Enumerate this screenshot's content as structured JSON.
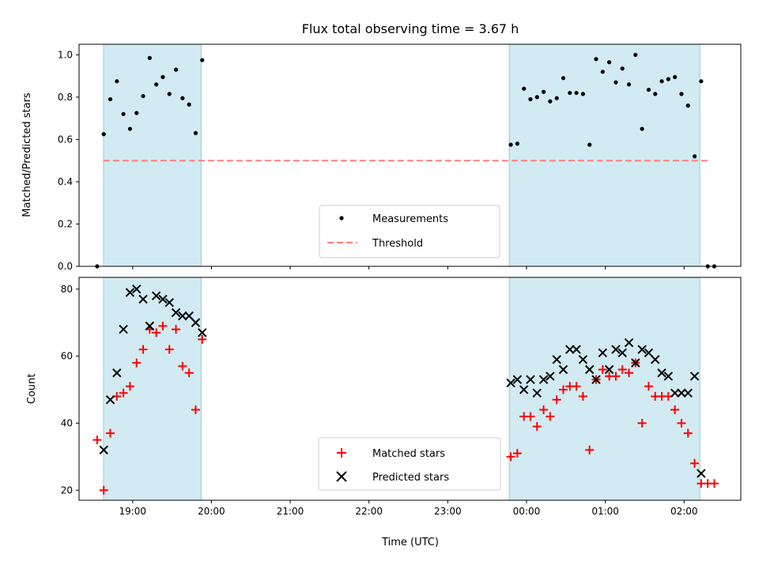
{
  "chart_data": [
    {
      "type": "scatter",
      "title": "Flux total observing time = 3.67 h",
      "ylabel": "Matched/Predicted stars",
      "xlim": [
        18.32,
        2.72
      ],
      "ylim": [
        0,
        1.05
      ],
      "yticks": [
        "0.0",
        "0.2",
        "0.4",
        "0.6",
        "0.8",
        "1.0"
      ],
      "shaded_regions": [
        [
          18.63,
          19.87
        ],
        [
          23.78,
          2.2
        ]
      ],
      "shade_color": "#add8e6",
      "legend": {
        "position": "lower center",
        "items": [
          "Measurements",
          "Threshold"
        ]
      },
      "threshold": {
        "name": "Threshold",
        "value": 0.5,
        "x_range": [
          18.63,
          2.3
        ],
        "color": "#ff8080",
        "style": "dashed"
      },
      "series": [
        {
          "name": "Measurements",
          "color": "#000000",
          "marker": "dot",
          "points": [
            [
              "18:33",
              0.0
            ],
            [
              "18:38",
              0.625
            ],
            [
              "18:43",
              0.79
            ],
            [
              "18:48",
              0.875
            ],
            [
              "18:53",
              0.72
            ],
            [
              "18:58",
              0.65
            ],
            [
              "19:03",
              0.725
            ],
            [
              "19:08",
              0.805
            ],
            [
              "19:13",
              0.985
            ],
            [
              "19:18",
              0.86
            ],
            [
              "19:23",
              0.895
            ],
            [
              "19:28",
              0.815
            ],
            [
              "19:33",
              0.93
            ],
            [
              "19:38",
              0.795
            ],
            [
              "19:43",
              0.765
            ],
            [
              "19:48",
              0.63
            ],
            [
              "19:53",
              0.975
            ],
            [
              "23:48",
              0.575
            ],
            [
              "23:53",
              0.58
            ],
            [
              "23:58",
              0.84
            ],
            [
              "00:03",
              0.79
            ],
            [
              "00:08",
              0.8
            ],
            [
              "00:13",
              0.825
            ],
            [
              "00:18",
              0.78
            ],
            [
              "00:23",
              0.795
            ],
            [
              "00:28",
              0.89
            ],
            [
              "00:33",
              0.82
            ],
            [
              "00:38",
              0.82
            ],
            [
              "00:43",
              0.815
            ],
            [
              "00:48",
              0.575
            ],
            [
              "00:53",
              0.98
            ],
            [
              "00:58",
              0.92
            ],
            [
              "01:03",
              0.965
            ],
            [
              "01:08",
              0.87
            ],
            [
              "01:13",
              0.935
            ],
            [
              "01:18",
              0.86
            ],
            [
              "01:23",
              1.0
            ],
            [
              "01:28",
              0.65
            ],
            [
              "01:33",
              0.835
            ],
            [
              "01:38",
              0.815
            ],
            [
              "01:43",
              0.875
            ],
            [
              "01:48",
              0.885
            ],
            [
              "01:53",
              0.895
            ],
            [
              "01:58",
              0.815
            ],
            [
              "02:03",
              0.76
            ],
            [
              "02:08",
              0.52
            ],
            [
              "02:13",
              0.875
            ],
            [
              "02:18",
              0.0
            ],
            [
              "02:23",
              0.0
            ]
          ]
        }
      ]
    },
    {
      "type": "scatter",
      "xlabel": "Time (UTC)",
      "ylabel": "Count",
      "xlim": [
        18.32,
        2.72
      ],
      "ylim": [
        17,
        83.5
      ],
      "yticks": [
        "20",
        "40",
        "60",
        "80"
      ],
      "xticks": [
        "19:00",
        "20:00",
        "21:00",
        "22:00",
        "23:00",
        "00:00",
        "01:00",
        "02:00"
      ],
      "shaded_regions": [
        [
          18.63,
          19.87
        ],
        [
          23.78,
          2.2
        ]
      ],
      "shade_color": "#add8e6",
      "legend": {
        "position": "lower center",
        "items": [
          "Matched stars",
          "Predicted stars"
        ]
      },
      "series": [
        {
          "name": "Matched stars",
          "color": "#ff0000",
          "marker": "plus",
          "points": [
            [
              "18:33",
              35
            ],
            [
              "18:38",
              20
            ],
            [
              "18:43",
              37
            ],
            [
              "18:48",
              48
            ],
            [
              "18:53",
              49
            ],
            [
              "18:58",
              51
            ],
            [
              "19:03",
              58
            ],
            [
              "19:08",
              62
            ],
            [
              "19:13",
              68
            ],
            [
              "19:18",
              67
            ],
            [
              "19:23",
              69
            ],
            [
              "19:28",
              62
            ],
            [
              "19:33",
              68
            ],
            [
              "19:38",
              57
            ],
            [
              "19:43",
              55
            ],
            [
              "19:48",
              44
            ],
            [
              "19:53",
              65
            ],
            [
              "23:48",
              30
            ],
            [
              "23:53",
              31
            ],
            [
              "23:58",
              42
            ],
            [
              "00:03",
              42
            ],
            [
              "00:08",
              39
            ],
            [
              "00:13",
              44
            ],
            [
              "00:18",
              42
            ],
            [
              "00:23",
              47
            ],
            [
              "00:28",
              50
            ],
            [
              "00:33",
              51
            ],
            [
              "00:38",
              51
            ],
            [
              "00:43",
              48
            ],
            [
              "00:48",
              32
            ],
            [
              "00:53",
              53
            ],
            [
              "00:58",
              56
            ],
            [
              "01:03",
              54
            ],
            [
              "01:08",
              54
            ],
            [
              "01:13",
              56
            ],
            [
              "01:18",
              55
            ],
            [
              "01:23",
              58
            ],
            [
              "01:28",
              40
            ],
            [
              "01:33",
              51
            ],
            [
              "01:38",
              48
            ],
            [
              "01:43",
              48
            ],
            [
              "01:48",
              48
            ],
            [
              "01:53",
              44
            ],
            [
              "01:58",
              40
            ],
            [
              "02:03",
              37
            ],
            [
              "02:08",
              28
            ],
            [
              "02:13",
              22
            ],
            [
              "02:18",
              22
            ],
            [
              "02:23",
              22
            ]
          ]
        },
        {
          "name": "Predicted stars",
          "color": "#000000",
          "marker": "x",
          "points": [
            [
              "18:38",
              32
            ],
            [
              "18:43",
              47
            ],
            [
              "18:48",
              55
            ],
            [
              "18:53",
              68
            ],
            [
              "18:58",
              79
            ],
            [
              "19:03",
              80
            ],
            [
              "19:08",
              77
            ],
            [
              "19:13",
              69
            ],
            [
              "19:18",
              78
            ],
            [
              "19:23",
              77
            ],
            [
              "19:28",
              76
            ],
            [
              "19:33",
              73
            ],
            [
              "19:38",
              72
            ],
            [
              "19:43",
              72
            ],
            [
              "19:48",
              70
            ],
            [
              "19:53",
              67
            ],
            [
              "23:48",
              52
            ],
            [
              "23:53",
              53
            ],
            [
              "23:58",
              50
            ],
            [
              "00:03",
              53
            ],
            [
              "00:08",
              49
            ],
            [
              "00:13",
              53
            ],
            [
              "00:18",
              54
            ],
            [
              "00:23",
              59
            ],
            [
              "00:28",
              56
            ],
            [
              "00:33",
              62
            ],
            [
              "00:38",
              62
            ],
            [
              "00:43",
              59
            ],
            [
              "00:48",
              56
            ],
            [
              "00:53",
              53
            ],
            [
              "00:58",
              61
            ],
            [
              "01:03",
              56
            ],
            [
              "01:08",
              62
            ],
            [
              "01:13",
              61
            ],
            [
              "01:18",
              64
            ],
            [
              "01:23",
              58
            ],
            [
              "01:28",
              62
            ],
            [
              "01:33",
              61
            ],
            [
              "01:38",
              59
            ],
            [
              "01:43",
              55
            ],
            [
              "01:48",
              54
            ],
            [
              "01:53",
              49
            ],
            [
              "01:58",
              49
            ],
            [
              "02:03",
              49
            ],
            [
              "02:08",
              54
            ],
            [
              "02:13",
              25
            ]
          ]
        }
      ]
    }
  ]
}
